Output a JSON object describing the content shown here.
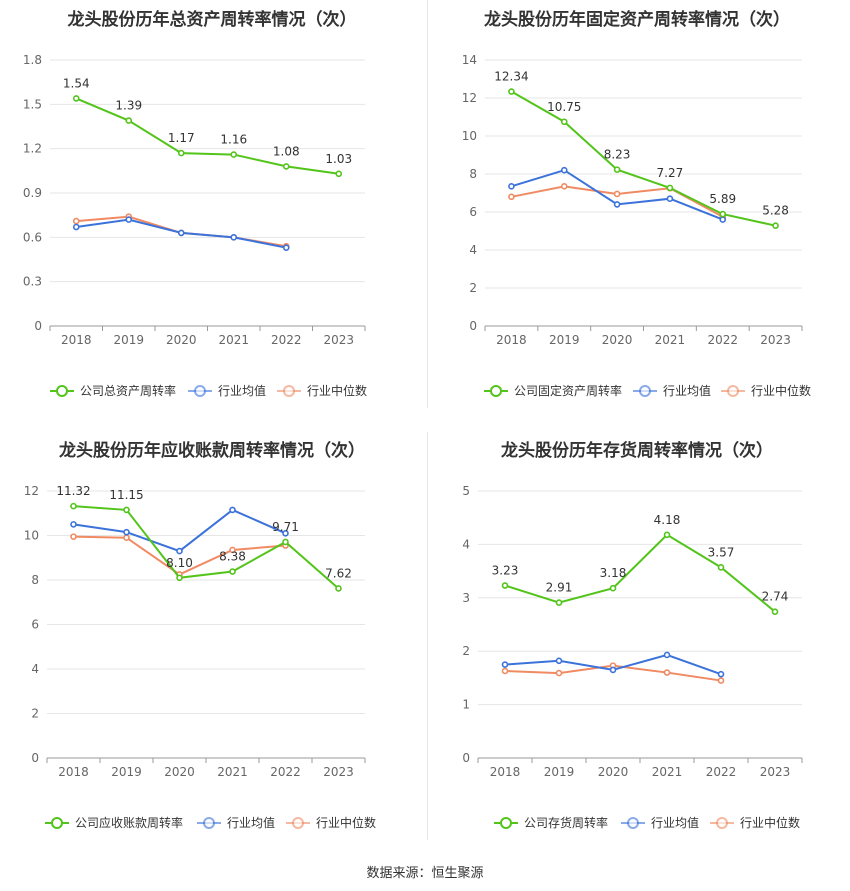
{
  "colors": {
    "company": "#52c41a",
    "avg": "#3b73db",
    "median": "#f08a62",
    "grid": "#e6e6e6",
    "axis_text": "#666666",
    "title": "#333333"
  },
  "source_text": "数据来源：恒生聚源",
  "chart_data": [
    {
      "type": "line",
      "title": "龙头股份历年总资产周转率情况（次）",
      "categories": [
        "2018",
        "2019",
        "2020",
        "2021",
        "2022",
        "2023"
      ],
      "ylim": [
        0,
        1.8
      ],
      "yticks": [
        "0",
        "0.3",
        "0.6",
        "0.9",
        "1.2",
        "1.5",
        "1.8"
      ],
      "grid": true,
      "legend_position": "bottom",
      "series": [
        {
          "name": "公司总资产周转率",
          "values": [
            1.54,
            1.39,
            1.17,
            1.16,
            1.08,
            1.03
          ],
          "labels": [
            "1.54",
            "1.39",
            "1.17",
            "1.16",
            "1.08",
            "1.03"
          ]
        },
        {
          "name": "行业均值",
          "values": [
            0.67,
            0.72,
            0.63,
            0.6,
            0.53,
            null
          ]
        },
        {
          "name": "行业中位数",
          "values": [
            0.71,
            0.74,
            0.63,
            0.6,
            0.54,
            null
          ]
        }
      ]
    },
    {
      "type": "line",
      "title": "龙头股份历年固定资产周转率情况（次）",
      "categories": [
        "2018",
        "2019",
        "2020",
        "2021",
        "2022",
        "2023"
      ],
      "ylim": [
        0,
        14
      ],
      "yticks": [
        "0",
        "2",
        "4",
        "6",
        "8",
        "10",
        "12",
        "14"
      ],
      "grid": true,
      "legend_position": "bottom",
      "series": [
        {
          "name": "公司固定资产周转率",
          "values": [
            12.34,
            10.75,
            8.23,
            7.27,
            5.89,
            5.28
          ],
          "labels": [
            "12.34",
            "10.75",
            "8.23",
            "7.27",
            "5.89",
            "5.28"
          ]
        },
        {
          "name": "行业均值",
          "values": [
            7.35,
            8.2,
            6.4,
            6.7,
            5.6,
            null
          ]
        },
        {
          "name": "行业中位数",
          "values": [
            6.8,
            7.35,
            6.95,
            7.25,
            5.75,
            null
          ]
        }
      ]
    },
    {
      "type": "line",
      "title": "龙头股份历年应收账款周转率情况（次）",
      "categories": [
        "2018",
        "2019",
        "2020",
        "2021",
        "2022",
        "2023"
      ],
      "ylim": [
        0,
        12
      ],
      "yticks": [
        "0",
        "2",
        "4",
        "6",
        "8",
        "10",
        "12"
      ],
      "grid": true,
      "legend_position": "bottom",
      "series": [
        {
          "name": "公司应收账款周转率",
          "values": [
            11.32,
            11.15,
            8.1,
            8.38,
            9.71,
            7.62
          ],
          "labels": [
            "11.32",
            "11.15",
            "8.10",
            "8.38",
            "9.71",
            "7.62"
          ]
        },
        {
          "name": "行业均值",
          "values": [
            10.5,
            10.15,
            9.3,
            11.15,
            10.1,
            null
          ]
        },
        {
          "name": "行业中位数",
          "values": [
            9.95,
            9.9,
            8.25,
            9.35,
            9.55,
            null
          ]
        }
      ]
    },
    {
      "type": "line",
      "title": "龙头股份历年存货周转率情况（次）",
      "categories": [
        "2018",
        "2019",
        "2020",
        "2021",
        "2022",
        "2023"
      ],
      "ylim": [
        0,
        5
      ],
      "yticks": [
        "0",
        "1",
        "2",
        "3",
        "4",
        "5"
      ],
      "grid": true,
      "legend_position": "bottom",
      "series": [
        {
          "name": "公司存货周转率",
          "values": [
            3.23,
            2.91,
            3.18,
            4.18,
            3.57,
            2.74
          ],
          "labels": [
            "3.23",
            "2.91",
            "3.18",
            "4.18",
            "3.57",
            "2.74"
          ]
        },
        {
          "name": "行业均值",
          "values": [
            1.75,
            1.82,
            1.65,
            1.93,
            1.57,
            null
          ]
        },
        {
          "name": "行业中位数",
          "values": [
            1.63,
            1.59,
            1.73,
            1.6,
            1.45,
            null
          ]
        }
      ]
    }
  ]
}
